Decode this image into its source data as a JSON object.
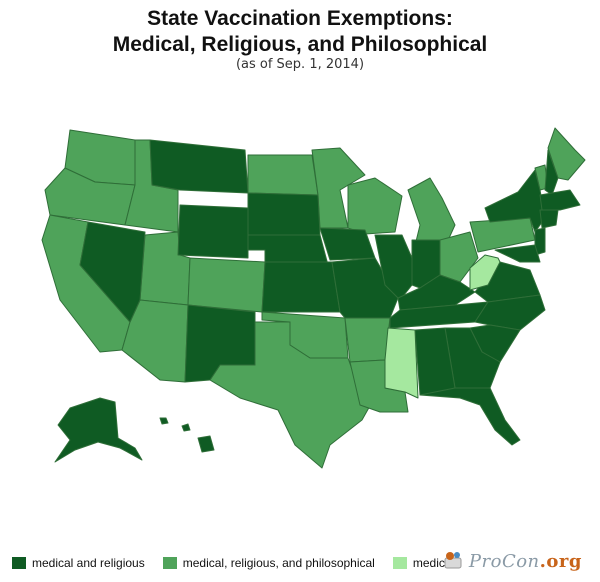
{
  "title_line1": "State Vaccination Exemptions:",
  "title_line2": "Medical, Religious, and Philosophical",
  "subtitle": "(as of Sep. 1, 2014)",
  "colors": {
    "medical_religious": "#0f5b23",
    "philosophical": "#4fa35a",
    "medical": "#a5e89f",
    "border": "#2f6e38"
  },
  "legend": [
    {
      "label": "medical and religious",
      "color": "#0f5b23"
    },
    {
      "label": "medical, religious, and philosophical",
      "color": "#4fa35a"
    },
    {
      "label": "medical",
      "color": "#a5e89f"
    }
  ],
  "logo": {
    "text": "ProCon",
    "tld": ".org"
  }
}
